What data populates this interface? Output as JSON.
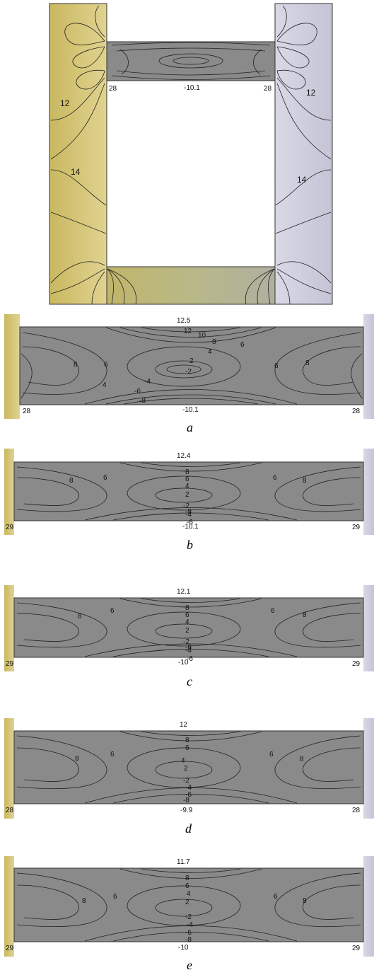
{
  "frame": {
    "beam_top": "-10.1",
    "left_corner": "28",
    "right_corner": "28",
    "left_col_labels": [
      "12",
      "14"
    ],
    "right_col_labels": [
      "12",
      "14"
    ]
  },
  "panels": [
    {
      "caption": "a",
      "top_value": "12.5",
      "bottom_value": "-10.1",
      "left_corner": "28",
      "right_corner": "28",
      "contours": [
        "12",
        "10",
        "8",
        "6",
        "4",
        "2",
        "-2",
        "-4",
        "-6",
        "-8"
      ],
      "side_labels": [
        "8",
        "6",
        "4",
        "6",
        "8"
      ]
    },
    {
      "caption": "b",
      "top_value": "12.4",
      "bottom_value": "-10.1",
      "left_corner": "29",
      "right_corner": "29",
      "contours": [
        "8",
        "6",
        "4",
        "2",
        "-2",
        "-4",
        "-6",
        "-8"
      ],
      "side_labels": [
        "8",
        "6",
        "6",
        "8"
      ]
    },
    {
      "caption": "c",
      "top_value": "12.1",
      "bottom_value": "-10",
      "left_corner": "29",
      "right_corner": "29",
      "contours": [
        "8",
        "6",
        "4",
        "2",
        "-2",
        "-4",
        "-6",
        "-8"
      ],
      "side_labels": [
        "8",
        "6",
        "6",
        "8"
      ]
    },
    {
      "caption": "d",
      "top_value": "12",
      "bottom_value": "-9.9",
      "left_corner": "28",
      "right_corner": "28",
      "contours": [
        "8",
        "6",
        "4",
        "2",
        "-2",
        "-4",
        "-6",
        "-8"
      ],
      "side_labels": [
        "8",
        "6",
        "6",
        "8"
      ]
    },
    {
      "caption": "e",
      "top_value": "11.7",
      "bottom_value": "-10",
      "left_corner": "29",
      "right_corner": "29",
      "contours": [
        "8",
        "6",
        "4",
        "2",
        "-2",
        "-4",
        "-6",
        "-8"
      ],
      "side_labels": [
        "8",
        "6",
        "6",
        "8"
      ]
    }
  ],
  "colors": {
    "left_column": "#d9cc80",
    "right_column": "#d0d0e0",
    "beam": "#8a8a8a",
    "bottom_beam": "#b9b37a"
  }
}
